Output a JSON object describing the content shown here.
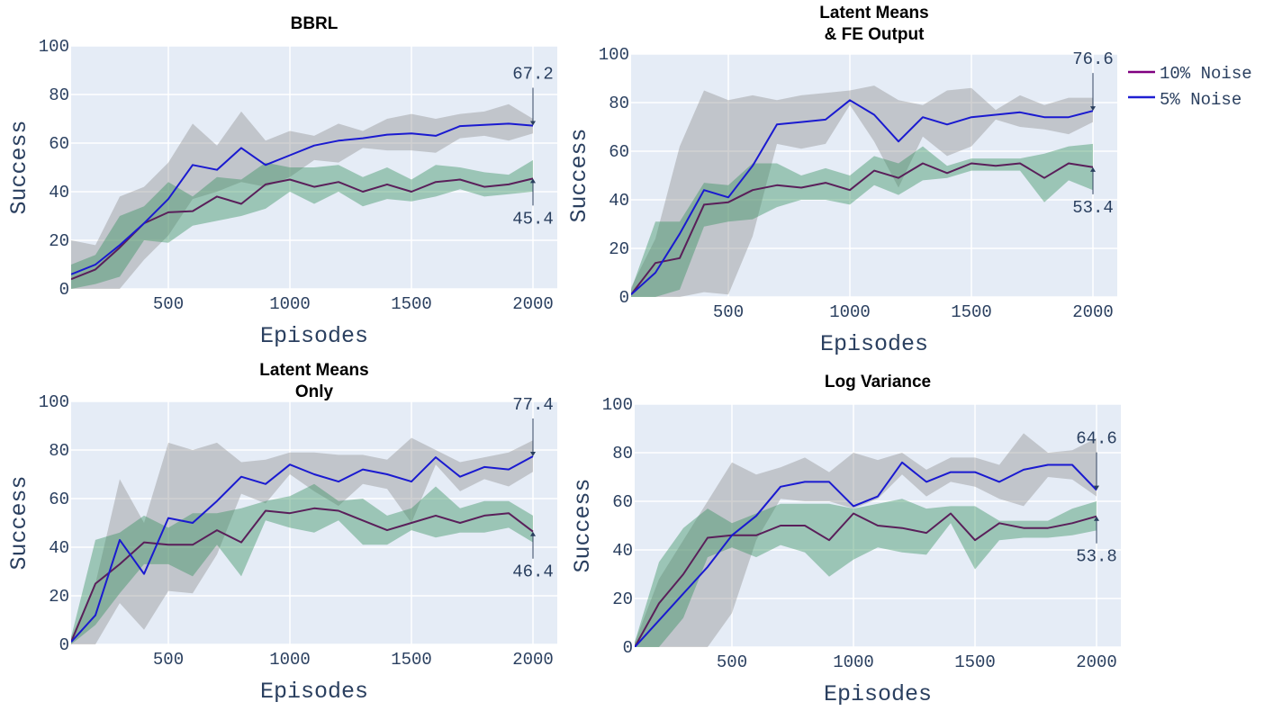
{
  "legend": {
    "items": [
      {
        "label": "10% Noise",
        "color": "#800080"
      },
      {
        "label": "5% Noise",
        "color": "#1f1fd2"
      }
    ]
  },
  "colors": {
    "plot_bg": "#e5ecf6",
    "band_5pct": "#8c8c8c",
    "band_10pct": "#2e8b57",
    "line_10pct": "#5a1f5a",
    "line_5pct": "#1a1ad0",
    "axis_text": "#2a3f5f"
  },
  "chart_data": [
    {
      "type": "line",
      "title": "BBRL",
      "xlabel": "Episodes",
      "ylabel": "Success",
      "xlim": [
        100,
        2100
      ],
      "ylim": [
        0,
        100
      ],
      "xticks": [
        500,
        1000,
        1500,
        2000
      ],
      "yticks": [
        0,
        20,
        40,
        60,
        80,
        100
      ],
      "x": [
        100,
        200,
        300,
        400,
        500,
        600,
        700,
        800,
        900,
        1000,
        1100,
        1200,
        1300,
        1400,
        1500,
        1600,
        1700,
        1800,
        1900,
        2000
      ],
      "series": [
        {
          "name": "5% Noise",
          "values": [
            6,
            10,
            18,
            27,
            37,
            51,
            49,
            58,
            51,
            55,
            59,
            61,
            62,
            63.5,
            64,
            63,
            67,
            67.5,
            68,
            67.2
          ],
          "upper": [
            20,
            18,
            38,
            42,
            52,
            68,
            59,
            73,
            61,
            65,
            63,
            68,
            65,
            70,
            72,
            70,
            72,
            73,
            76,
            70
          ],
          "lower": [
            0,
            0,
            0,
            12,
            22,
            37,
            40,
            44,
            42,
            46,
            53,
            52,
            58,
            57,
            57,
            56,
            62,
            63,
            61,
            64
          ]
        },
        {
          "name": "10% Noise",
          "values": [
            4,
            8,
            17,
            27,
            31.5,
            32,
            38,
            35,
            43,
            45,
            42,
            44,
            40,
            43,
            40,
            44,
            45,
            42,
            43,
            45.4
          ],
          "upper": [
            10,
            14,
            30,
            34,
            44,
            38,
            46,
            45,
            52,
            50,
            50,
            51,
            46,
            50,
            45,
            51,
            50,
            48,
            47,
            53
          ],
          "lower": [
            0,
            2,
            5,
            20,
            19,
            26,
            28,
            30,
            33,
            40,
            35,
            40,
            34,
            37,
            36,
            38,
            41,
            38,
            39,
            40
          ]
        }
      ],
      "annotations": [
        {
          "text": "67.2",
          "x": 2000,
          "y": 67.2,
          "pos": "above"
        },
        {
          "text": "45.4",
          "x": 2000,
          "y": 45.4,
          "pos": "below"
        }
      ]
    },
    {
      "type": "line",
      "title": "Latent Means & FE Output",
      "title_lines": [
        "Latent Means",
        "& FE Output"
      ],
      "xlabel": "Episodes",
      "ylabel": "Success",
      "xlim": [
        100,
        2100
      ],
      "ylim": [
        0,
        100
      ],
      "xticks": [
        500,
        1000,
        1500,
        2000
      ],
      "yticks": [
        0,
        20,
        40,
        60,
        80,
        100
      ],
      "x": [
        100,
        200,
        300,
        400,
        500,
        600,
        700,
        800,
        900,
        1000,
        1100,
        1200,
        1300,
        1400,
        1500,
        1600,
        1700,
        1800,
        1900,
        2000
      ],
      "series": [
        {
          "name": "5% Noise",
          "values": [
            1,
            10,
            26,
            44,
            41,
            54,
            71,
            72,
            73,
            81,
            75,
            64,
            74,
            71,
            74,
            75,
            76,
            74,
            74,
            76.6
          ],
          "upper": [
            4,
            24,
            62,
            85,
            81,
            83,
            81,
            83,
            84,
            85,
            87,
            81,
            79,
            85,
            86,
            77,
            83,
            79,
            82,
            82
          ],
          "lower": [
            0,
            0,
            0,
            2,
            1,
            25,
            63,
            61,
            63,
            79,
            64,
            45,
            66,
            58,
            62,
            73,
            70,
            69,
            67,
            72
          ]
        },
        {
          "name": "10% Noise",
          "values": [
            1,
            14,
            16,
            38,
            39,
            44,
            46,
            45,
            47,
            44,
            52,
            49,
            55,
            51,
            55,
            54,
            55,
            49,
            55,
            53.4
          ],
          "upper": [
            3,
            31,
            31,
            47,
            46,
            55,
            55,
            50,
            53,
            50,
            58,
            55,
            62,
            54,
            57,
            57,
            57,
            59,
            62,
            63
          ],
          "lower": [
            0,
            0,
            3,
            29,
            31,
            32,
            37,
            40,
            40,
            38,
            46,
            42,
            48,
            49,
            52,
            52,
            52,
            39,
            48,
            44
          ]
        }
      ],
      "annotations": [
        {
          "text": "76.6",
          "x": 2000,
          "y": 76.6,
          "pos": "above"
        },
        {
          "text": "53.4",
          "x": 2000,
          "y": 53.4,
          "pos": "below"
        }
      ]
    },
    {
      "type": "line",
      "title": "Latent Means Only",
      "title_lines": [
        "Latent Means",
        "Only"
      ],
      "xlabel": "Episodes",
      "ylabel": "Success",
      "xlim": [
        100,
        2100
      ],
      "ylim": [
        0,
        100
      ],
      "xticks": [
        500,
        1000,
        1500,
        2000
      ],
      "yticks": [
        0,
        20,
        40,
        60,
        80,
        100
      ],
      "x": [
        100,
        200,
        300,
        400,
        500,
        600,
        700,
        800,
        900,
        1000,
        1100,
        1200,
        1300,
        1400,
        1500,
        1600,
        1700,
        1800,
        1900,
        2000
      ],
      "series": [
        {
          "name": "5% Noise",
          "values": [
            1,
            12,
            43,
            29,
            52,
            50,
            59,
            69,
            66,
            74,
            70,
            67,
            72,
            70,
            67,
            77,
            69,
            73,
            72,
            77.4
          ],
          "upper": [
            3,
            25,
            68,
            50,
            83,
            80,
            83,
            75,
            76,
            79,
            79,
            78,
            78,
            76,
            85,
            80,
            75,
            77,
            79,
            84
          ],
          "lower": [
            0,
            0,
            17,
            6,
            22,
            21,
            37,
            62,
            58,
            70,
            63,
            57,
            66,
            64,
            50,
            74,
            63,
            68,
            65,
            71
          ]
        },
        {
          "name": "10% Noise",
          "values": [
            1,
            25,
            33,
            42,
            41,
            41,
            47,
            42,
            55,
            54,
            56,
            55,
            51,
            47,
            50,
            53,
            50,
            53,
            54,
            46.4
          ],
          "upper": [
            3,
            43,
            46,
            53,
            48,
            54,
            54,
            56,
            59,
            61,
            66,
            59,
            60,
            53,
            56,
            65,
            56,
            59,
            59,
            53
          ],
          "lower": [
            0,
            8,
            21,
            33,
            33,
            28,
            41,
            28,
            51,
            48,
            46,
            51,
            41,
            41,
            47,
            44,
            46,
            46,
            48,
            42
          ]
        }
      ],
      "annotations": [
        {
          "text": "77.4",
          "x": 2000,
          "y": 77.4,
          "pos": "above"
        },
        {
          "text": "46.4",
          "x": 2000,
          "y": 46.4,
          "pos": "below"
        }
      ]
    },
    {
      "type": "line",
      "title": "Log Variance",
      "xlabel": "Episodes",
      "ylabel": "Success",
      "xlim": [
        100,
        2100
      ],
      "ylim": [
        0,
        100
      ],
      "xticks": [
        500,
        1000,
        1500,
        2000
      ],
      "yticks": [
        0,
        20,
        40,
        60,
        80,
        100
      ],
      "x": [
        100,
        200,
        300,
        400,
        500,
        600,
        700,
        800,
        900,
        1000,
        1100,
        1200,
        1300,
        1400,
        1500,
        1600,
        1700,
        1800,
        1900,
        2000
      ],
      "series": [
        {
          "name": "5% Noise",
          "values": [
            0,
            11,
            22,
            33,
            46,
            54,
            66,
            68,
            68,
            58,
            62,
            76,
            68,
            72,
            72,
            68,
            73,
            75,
            75,
            64.6
          ],
          "upper": [
            2,
            28,
            44,
            60,
            76,
            71,
            74,
            78,
            72,
            80,
            77,
            80,
            73,
            78,
            78,
            75,
            88,
            80,
            81,
            86
          ],
          "lower": [
            0,
            0,
            0,
            0,
            14,
            44,
            61,
            60,
            60,
            57,
            61,
            71,
            62,
            68,
            66,
            61,
            58,
            70,
            69,
            62
          ]
        },
        {
          "name": "10% Noise",
          "values": [
            0,
            18,
            30,
            45,
            46,
            46,
            50,
            50,
            44,
            55,
            50,
            49,
            47,
            55,
            44,
            51,
            49,
            49,
            51,
            53.8
          ],
          "upper": [
            2,
            35,
            49,
            57,
            51,
            55,
            59,
            59,
            59,
            57,
            59,
            61,
            57,
            58,
            58,
            52,
            52,
            52,
            57,
            60
          ],
          "lower": [
            0,
            0,
            12,
            37,
            41,
            37,
            42,
            39,
            29,
            36,
            41,
            39,
            38,
            51,
            32,
            44,
            45,
            45,
            46,
            48
          ]
        }
      ],
      "annotations": [
        {
          "text": "64.6",
          "x": 2000,
          "y": 64.6,
          "pos": "above"
        },
        {
          "text": "53.8",
          "x": 2000,
          "y": 53.8,
          "pos": "below"
        }
      ]
    }
  ]
}
